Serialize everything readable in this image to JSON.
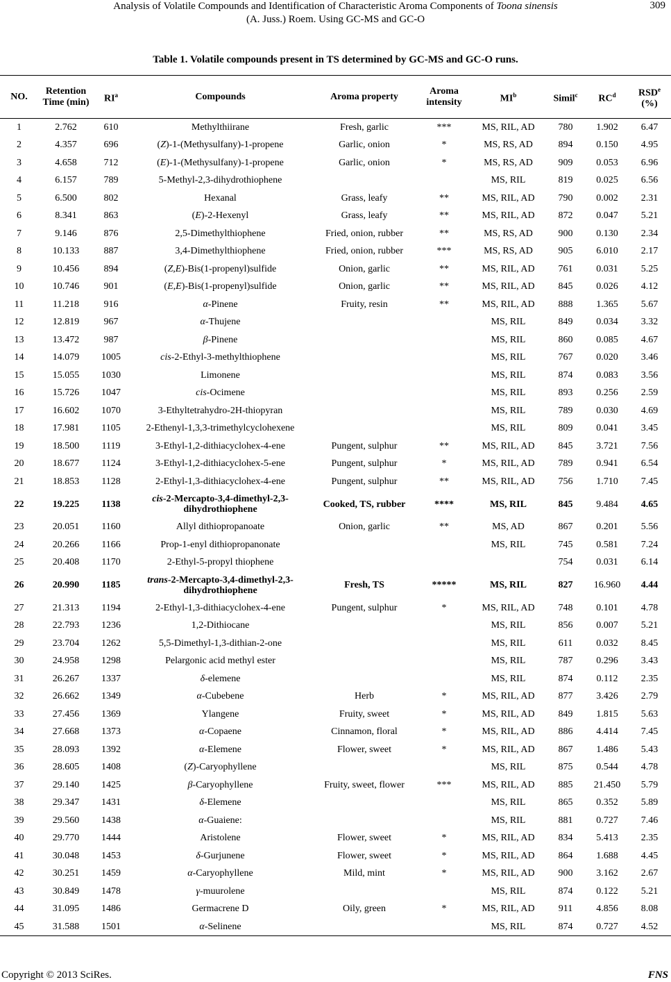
{
  "running_head": {
    "line1_prefix": "Analysis of Volatile Compounds and Identification of Characteristic Aroma Components of ",
    "line1_italic": "Toona sinensis",
    "line2": "(A. Juss.) Roem. Using GC-MS and GC-O",
    "page_number": "309"
  },
  "caption": "Table 1. Volatile compounds present in TS determined by GC-MS and GC-O runs.",
  "headers": [
    {
      "text": "NO.",
      "sup": ""
    },
    {
      "text": "Retention Time (min)",
      "sup": ""
    },
    {
      "text": "RI",
      "sup": "a"
    },
    {
      "text": "Compounds",
      "sup": ""
    },
    {
      "text": "Aroma property",
      "sup": ""
    },
    {
      "text": "Aroma intensity",
      "sup": ""
    },
    {
      "text": "MI",
      "sup": "b"
    },
    {
      "text": "Simil",
      "sup": "c"
    },
    {
      "text": "RC",
      "sup": "d"
    },
    {
      "text": "RSD",
      "sup": "e",
      "suffix": " (%)"
    }
  ],
  "rows": [
    {
      "no": "1",
      "rt": "2.762",
      "ri": "610",
      "compound": [
        [
          "Methylthiirane",
          0
        ]
      ],
      "aroma": "Fresh, garlic",
      "intensity": "***",
      "mi": "MS, RIL, AD",
      "simil": "780",
      "rc": "1.902",
      "rsd": "6.47"
    },
    {
      "no": "2",
      "rt": "4.357",
      "ri": "696",
      "compound": [
        [
          "(",
          0
        ],
        [
          "Z",
          1
        ],
        [
          ")-1-(Methysulfany)-1-propene",
          0
        ]
      ],
      "aroma": "Garlic, onion",
      "intensity": "*",
      "mi": "MS, RS, AD",
      "simil": "894",
      "rc": "0.150",
      "rsd": "4.95"
    },
    {
      "no": "3",
      "rt": "4.658",
      "ri": "712",
      "compound": [
        [
          "(",
          0
        ],
        [
          "E",
          1
        ],
        [
          ")-1-(Methysulfany)-1-propene",
          0
        ]
      ],
      "aroma": "Garlic, onion",
      "intensity": "*",
      "mi": "MS, RS, AD",
      "simil": "909",
      "rc": "0.053",
      "rsd": "6.96"
    },
    {
      "no": "4",
      "rt": "6.157",
      "ri": "789",
      "compound": [
        [
          "5-Methyl-2,3-dihydrothiophene",
          0
        ]
      ],
      "aroma": "",
      "intensity": "",
      "mi": "MS, RIL",
      "simil": "819",
      "rc": "0.025",
      "rsd": "6.56"
    },
    {
      "no": "5",
      "rt": "6.500",
      "ri": "802",
      "compound": [
        [
          "Hexanal",
          0
        ]
      ],
      "aroma": "Grass, leafy",
      "intensity": "**",
      "mi": "MS, RIL, AD",
      "simil": "790",
      "rc": "0.002",
      "rsd": "2.31"
    },
    {
      "no": "6",
      "rt": "8.341",
      "ri": "863",
      "compound": [
        [
          "(",
          0
        ],
        [
          "E",
          1
        ],
        [
          ")-2-Hexenyl",
          0
        ]
      ],
      "aroma": "Grass, leafy",
      "intensity": "**",
      "mi": "MS, RIL, AD",
      "simil": "872",
      "rc": "0.047",
      "rsd": "5.21"
    },
    {
      "no": "7",
      "rt": "9.146",
      "ri": "876",
      "compound": [
        [
          "2,5-Dimethylthiophene",
          0
        ]
      ],
      "aroma": "Fried, onion, rubber",
      "intensity": "**",
      "mi": "MS, RS, AD",
      "simil": "900",
      "rc": "0.130",
      "rsd": "2.34"
    },
    {
      "no": "8",
      "rt": "10.133",
      "ri": "887",
      "compound": [
        [
          "3,4-Dimethylthiophene",
          0
        ]
      ],
      "aroma": "Fried, onion, rubber",
      "intensity": "***",
      "mi": "MS, RS, AD",
      "simil": "905",
      "rc": "6.010",
      "rsd": "2.17"
    },
    {
      "no": "9",
      "rt": "10.456",
      "ri": "894",
      "compound": [
        [
          "(",
          0
        ],
        [
          "Z",
          1
        ],
        [
          ",",
          0
        ],
        [
          "E",
          1
        ],
        [
          ")-Bis(1-propenyl)sulfide",
          0
        ]
      ],
      "aroma": "Onion, garlic",
      "intensity": "**",
      "mi": "MS, RIL, AD",
      "simil": "761",
      "rc": "0.031",
      "rsd": "5.25"
    },
    {
      "no": "10",
      "rt": "10.746",
      "ri": "901",
      "compound": [
        [
          "(",
          0
        ],
        [
          "E",
          1
        ],
        [
          ",",
          0
        ],
        [
          "E",
          1
        ],
        [
          ")-Bis(1-propenyl)sulfide",
          0
        ]
      ],
      "aroma": "Onion, garlic",
      "intensity": "**",
      "mi": "MS, RIL, AD",
      "simil": "845",
      "rc": "0.026",
      "rsd": "4.12"
    },
    {
      "no": "11",
      "rt": "11.218",
      "ri": "916",
      "compound": [
        [
          "α",
          1
        ],
        [
          "-Pinene",
          0
        ]
      ],
      "aroma": "Fruity, resin",
      "intensity": "**",
      "mi": "MS, RIL, AD",
      "simil": "888",
      "rc": "1.365",
      "rsd": "5.67"
    },
    {
      "no": "12",
      "rt": "12.819",
      "ri": "967",
      "compound": [
        [
          "α",
          1
        ],
        [
          "-Thujene",
          0
        ]
      ],
      "aroma": "",
      "intensity": "",
      "mi": "MS, RIL",
      "simil": "849",
      "rc": "0.034",
      "rsd": "3.32"
    },
    {
      "no": "13",
      "rt": "13.472",
      "ri": "987",
      "compound": [
        [
          "β",
          1
        ],
        [
          "-Pinene",
          0
        ]
      ],
      "aroma": "",
      "intensity": "",
      "mi": "MS, RIL",
      "simil": "860",
      "rc": "0.085",
      "rsd": "4.67"
    },
    {
      "no": "14",
      "rt": "14.079",
      "ri": "1005",
      "compound": [
        [
          "cis",
          1
        ],
        [
          "-2-Ethyl-3-methylthiophene",
          0
        ]
      ],
      "aroma": "",
      "intensity": "",
      "mi": "MS, RIL",
      "simil": "767",
      "rc": "0.020",
      "rsd": "3.46"
    },
    {
      "no": "15",
      "rt": "15.055",
      "ri": "1030",
      "compound": [
        [
          "Limonene",
          0
        ]
      ],
      "aroma": "",
      "intensity": "",
      "mi": "MS, RIL",
      "simil": "874",
      "rc": "0.083",
      "rsd": "3.56"
    },
    {
      "no": "16",
      "rt": "15.726",
      "ri": "1047",
      "compound": [
        [
          "cis",
          1
        ],
        [
          "-Ocimene",
          0
        ]
      ],
      "aroma": "",
      "intensity": "",
      "mi": "MS, RIL",
      "simil": "893",
      "rc": "0.256",
      "rsd": "2.59"
    },
    {
      "no": "17",
      "rt": "16.602",
      "ri": "1070",
      "compound": [
        [
          "3-Ethyltetrahydro-2H-thiopyran",
          0
        ]
      ],
      "aroma": "",
      "intensity": "",
      "mi": "MS, RIL",
      "simil": "789",
      "rc": "0.030",
      "rsd": "4.69"
    },
    {
      "no": "18",
      "rt": "17.981",
      "ri": "1105",
      "compound": [
        [
          "2-Ethenyl-1,3,3-trimethylcyclohexene",
          0
        ]
      ],
      "aroma": "",
      "intensity": "",
      "mi": "MS, RIL",
      "simil": "809",
      "rc": "0.041",
      "rsd": "3.45"
    },
    {
      "no": "19",
      "rt": "18.500",
      "ri": "1119",
      "compound": [
        [
          "3-Ethyl-1,2-dithiacyclohex-4-ene",
          0
        ]
      ],
      "aroma": "Pungent, sulphur",
      "intensity": "**",
      "mi": "MS, RIL, AD",
      "simil": "845",
      "rc": "3.721",
      "rsd": "7.56"
    },
    {
      "no": "20",
      "rt": "18.677",
      "ri": "1124",
      "compound": [
        [
          "3-Ethyl-1,2-dithiacyclohex-5-ene",
          0
        ]
      ],
      "aroma": "Pungent, sulphur",
      "intensity": "*",
      "mi": "MS, RIL, AD",
      "simil": "789",
      "rc": "0.941",
      "rsd": "6.54"
    },
    {
      "no": "21",
      "rt": "18.853",
      "ri": "1128",
      "compound": [
        [
          "2-Ethyl-1,3-dithiacyclohex-4-ene",
          0
        ]
      ],
      "aroma": "Pungent, sulphur",
      "intensity": "**",
      "mi": "MS, RIL, AD",
      "simil": "756",
      "rc": "1.710",
      "rsd": "7.45"
    },
    {
      "no": "22",
      "rt": "19.225",
      "ri": "1138",
      "compound": [
        [
          "cis",
          1
        ],
        [
          "-2-Mercapto-3,4-dimethyl-2,3-dihydrothiophene",
          0
        ]
      ],
      "aroma": "Cooked, TS, rubber",
      "intensity": "****",
      "mi": "MS, RIL",
      "simil": "845",
      "rc": "9.484",
      "rsd": "4.65",
      "emphasis": true
    },
    {
      "no": "23",
      "rt": "20.051",
      "ri": "1160",
      "compound": [
        [
          "Allyl dithiopropanoate",
          0
        ]
      ],
      "aroma": "Onion, garlic",
      "intensity": "**",
      "mi": "MS, AD",
      "simil": "867",
      "rc": "0.201",
      "rsd": "5.56"
    },
    {
      "no": "24",
      "rt": "20.266",
      "ri": "1166",
      "compound": [
        [
          "Prop-1-enyl dithiopropanonate",
          0
        ]
      ],
      "aroma": "",
      "intensity": "",
      "mi": "MS, RIL",
      "simil": "745",
      "rc": "0.581",
      "rsd": "7.24"
    },
    {
      "no": "25",
      "rt": "20.408",
      "ri": "1170",
      "compound": [
        [
          "2-Ethyl-5-propyl thiophene",
          0
        ]
      ],
      "aroma": "",
      "intensity": "",
      "mi": "",
      "simil": "754",
      "rc": "0.031",
      "rsd": "6.14"
    },
    {
      "no": "26",
      "rt": "20.990",
      "ri": "1185",
      "compound": [
        [
          "trans",
          1
        ],
        [
          "-2-Mercapto-3,4-dimethyl-2,3-dihydrothiophene",
          0
        ]
      ],
      "aroma": "Fresh, TS",
      "intensity": "*****",
      "mi": "MS, RIL",
      "simil": "827",
      "rc": "16.960",
      "rsd": "4.44",
      "emphasis": true
    },
    {
      "no": "27",
      "rt": "21.313",
      "ri": "1194",
      "compound": [
        [
          "2-Ethyl-1,3-dithiacyclohex-4-ene",
          0
        ]
      ],
      "aroma": "Pungent, sulphur",
      "intensity": "*",
      "mi": "MS, RIL, AD",
      "simil": "748",
      "rc": "0.101",
      "rsd": "4.78"
    },
    {
      "no": "28",
      "rt": "22.793",
      "ri": "1236",
      "compound": [
        [
          "1,2-Dithiocane",
          0
        ]
      ],
      "aroma": "",
      "intensity": "",
      "mi": "MS, RIL",
      "simil": "856",
      "rc": "0.007",
      "rsd": "5.21"
    },
    {
      "no": "29",
      "rt": "23.704",
      "ri": "1262",
      "compound": [
        [
          "5,5-Dimethyl-1,3-dithian-2-one",
          0
        ]
      ],
      "aroma": "",
      "intensity": "",
      "mi": "MS, RIL",
      "simil": "611",
      "rc": "0.032",
      "rsd": "8.45"
    },
    {
      "no": "30",
      "rt": "24.958",
      "ri": "1298",
      "compound": [
        [
          "Pelargonic acid methyl ester",
          0
        ]
      ],
      "aroma": "",
      "intensity": "",
      "mi": "MS, RIL",
      "simil": "787",
      "rc": "0.296",
      "rsd": "3.43"
    },
    {
      "no": "31",
      "rt": "26.267",
      "ri": "1337",
      "compound": [
        [
          "δ",
          1
        ],
        [
          "-elemene",
          0
        ]
      ],
      "aroma": "",
      "intensity": "",
      "mi": "MS, RIL",
      "simil": "874",
      "rc": "0.112",
      "rsd": "2.35"
    },
    {
      "no": "32",
      "rt": "26.662",
      "ri": "1349",
      "compound": [
        [
          "α",
          1
        ],
        [
          "-Cubebene",
          0
        ]
      ],
      "aroma": "Herb",
      "intensity": "*",
      "mi": "MS, RIL, AD",
      "simil": "877",
      "rc": "3.426",
      "rsd": "2.79"
    },
    {
      "no": "33",
      "rt": "27.456",
      "ri": "1369",
      "compound": [
        [
          "Ylangene",
          0
        ]
      ],
      "aroma": "Fruity, sweet",
      "intensity": "*",
      "mi": "MS, RIL, AD",
      "simil": "849",
      "rc": "1.815",
      "rsd": "5.63"
    },
    {
      "no": "34",
      "rt": "27.668",
      "ri": "1373",
      "compound": [
        [
          "α",
          1
        ],
        [
          "-Copaene",
          0
        ]
      ],
      "aroma": "Cinnamon, floral",
      "intensity": "*",
      "mi": "MS, RIL, AD",
      "simil": "886",
      "rc": "4.414",
      "rsd": "7.45"
    },
    {
      "no": "35",
      "rt": "28.093",
      "ri": "1392",
      "compound": [
        [
          "α",
          1
        ],
        [
          "-Elemene",
          0
        ]
      ],
      "aroma": "Flower, sweet",
      "intensity": "*",
      "mi": "MS, RIL, AD",
      "simil": "867",
      "rc": "1.486",
      "rsd": "5.43"
    },
    {
      "no": "36",
      "rt": "28.605",
      "ri": "1408",
      "compound": [
        [
          "(",
          0
        ],
        [
          "Z",
          1
        ],
        [
          ")-Caryophyllene",
          0
        ]
      ],
      "aroma": "",
      "intensity": "",
      "mi": "MS, RIL",
      "simil": "875",
      "rc": "0.544",
      "rsd": "4.78"
    },
    {
      "no": "37",
      "rt": "29.140",
      "ri": "1425",
      "compound": [
        [
          "β",
          1
        ],
        [
          "-Caryophyllene",
          0
        ]
      ],
      "aroma": "Fruity, sweet, flower",
      "intensity": "***",
      "mi": "MS, RIL, AD",
      "simil": "885",
      "rc": "21.450",
      "rsd": "5.79"
    },
    {
      "no": "38",
      "rt": "29.347",
      "ri": "1431",
      "compound": [
        [
          "δ",
          1
        ],
        [
          "-Elemene",
          0
        ]
      ],
      "aroma": "",
      "intensity": "",
      "mi": "MS, RIL",
      "simil": "865",
      "rc": "0.352",
      "rsd": "5.89"
    },
    {
      "no": "39",
      "rt": "29.560",
      "ri": "1438",
      "compound": [
        [
          "α",
          1
        ],
        [
          "-Guaiene:",
          0
        ]
      ],
      "aroma": "",
      "intensity": "",
      "mi": "MS, RIL",
      "simil": "881",
      "rc": "0.727",
      "rsd": "7.46"
    },
    {
      "no": "40",
      "rt": "29.770",
      "ri": "1444",
      "compound": [
        [
          "Aristolene",
          0
        ]
      ],
      "aroma": "Flower, sweet",
      "intensity": "*",
      "mi": "MS, RIL, AD",
      "simil": "834",
      "rc": "5.413",
      "rsd": "2.35"
    },
    {
      "no": "41",
      "rt": "30.048",
      "ri": "1453",
      "compound": [
        [
          "δ",
          1
        ],
        [
          "-Gurjunene",
          0
        ]
      ],
      "aroma": "Flower, sweet",
      "intensity": "*",
      "mi": "MS, RIL, AD",
      "simil": "864",
      "rc": "1.688",
      "rsd": "4.45"
    },
    {
      "no": "42",
      "rt": "30.251",
      "ri": "1459",
      "compound": [
        [
          "α",
          1
        ],
        [
          "-Caryophyllene",
          0
        ]
      ],
      "aroma": "Mild, mint",
      "intensity": "*",
      "mi": "MS, RIL, AD",
      "simil": "900",
      "rc": "3.162",
      "rsd": "2.67"
    },
    {
      "no": "43",
      "rt": "30.849",
      "ri": "1478",
      "compound": [
        [
          "γ",
          1
        ],
        [
          "-muurolene",
          0
        ]
      ],
      "aroma": "",
      "intensity": "",
      "mi": "MS, RIL",
      "simil": "874",
      "rc": "0.122",
      "rsd": "5.21"
    },
    {
      "no": "44",
      "rt": "31.095",
      "ri": "1486",
      "compound": [
        [
          "Germacrene D",
          0
        ]
      ],
      "aroma": "Oily, green",
      "intensity": "*",
      "mi": "MS, RIL, AD",
      "simil": "911",
      "rc": "4.856",
      "rsd": "8.08"
    },
    {
      "no": "45",
      "rt": "31.588",
      "ri": "1501",
      "compound": [
        [
          "α",
          1
        ],
        [
          "-Selinene",
          0
        ]
      ],
      "aroma": "",
      "intensity": "",
      "mi": "MS, RIL",
      "simil": "874",
      "rc": "0.727",
      "rsd": "4.52"
    }
  ],
  "footer": {
    "copyright": "Copyright © 2013 SciRes.",
    "journal": "FNS"
  }
}
